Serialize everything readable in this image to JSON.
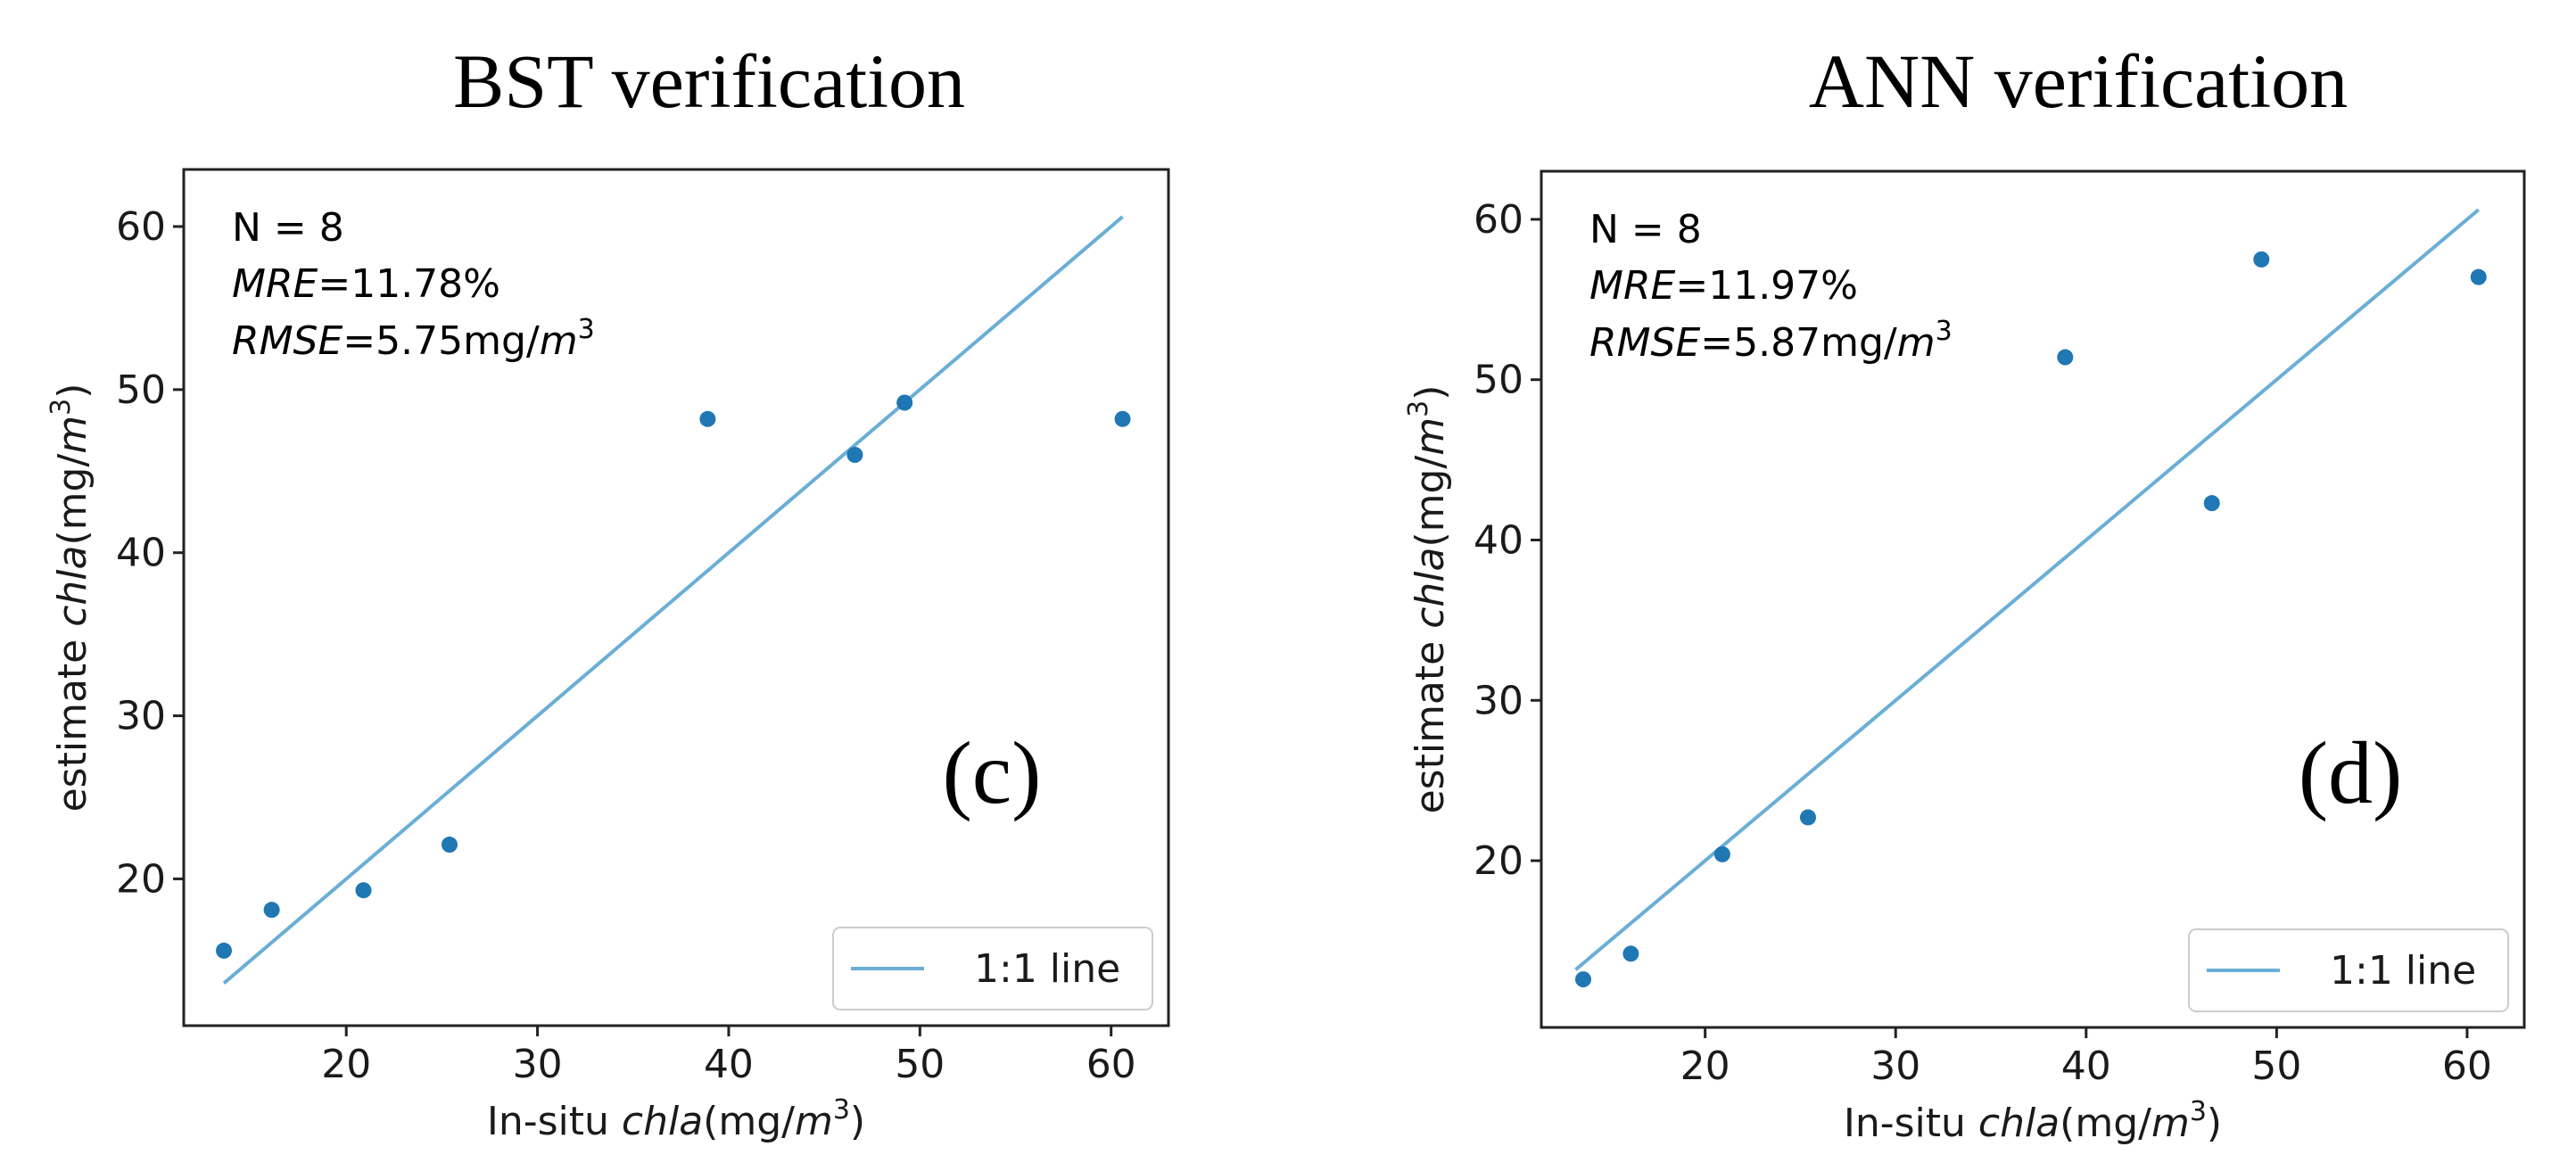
{
  "chart_data": [
    {
      "type": "scatter",
      "title": "BST verification",
      "panel_label": "(c)",
      "xlabel": {
        "prefix": "In-situ ",
        "italic": "chla",
        "units_prefix": "(mg/",
        "units_italic": "m",
        "units_sup": "3",
        "units_suffix": ")"
      },
      "ylabel": {
        "prefix": "estimate ",
        "italic": "chla",
        "units_prefix": "(mg/",
        "units_italic": "m",
        "units_sup": "3",
        "units_suffix": ")"
      },
      "xlim": [
        11.5,
        63
      ],
      "ylim": [
        11,
        63.5
      ],
      "xticks": [
        20,
        30,
        40,
        50,
        60
      ],
      "yticks": [
        20,
        30,
        40,
        50,
        60
      ],
      "annotations": {
        "n": "N = 8",
        "mre_label": "MRE",
        "mre_value": "=11.78%",
        "rmse_label": "RMSE",
        "rmse_value": "=5.75mg/",
        "rmse_unit_italic": "m",
        "rmse_unit_sup": "3"
      },
      "series": [
        {
          "name": "estimates",
          "x": [
            13.6,
            16.1,
            20.9,
            25.4,
            38.9,
            46.6,
            49.2,
            60.6
          ],
          "y": [
            15.6,
            18.1,
            19.3,
            22.1,
            48.2,
            46.0,
            49.2,
            48.2
          ]
        }
      ],
      "line": {
        "name": "1:1 line",
        "x": [
          13.6,
          60.6
        ],
        "y": [
          13.6,
          60.6
        ]
      },
      "legend": {
        "label": "1:1 line",
        "position": "lower-right"
      },
      "colors": {
        "points": "#1f77b4",
        "line": "#6aaed6"
      }
    },
    {
      "type": "scatter",
      "title": "ANN verification",
      "panel_label": "(d)",
      "xlabel": {
        "prefix": "In-situ ",
        "italic": "chla",
        "units_prefix": "(mg/",
        "units_italic": "m",
        "units_sup": "3",
        "units_suffix": ")"
      },
      "ylabel": {
        "prefix": "estimate ",
        "italic": "chla",
        "units_prefix": "(mg/",
        "units_italic": "m",
        "units_sup": "3",
        "units_suffix": ")"
      },
      "xlim": [
        11.4,
        63
      ],
      "ylim": [
        9.6,
        63
      ],
      "xticks": [
        20,
        30,
        40,
        50,
        60
      ],
      "yticks": [
        20,
        30,
        40,
        50,
        60
      ],
      "annotations": {
        "n": "N = 8",
        "mre_label": "MRE",
        "mre_value": "=11.97%",
        "rmse_label": "RMSE",
        "rmse_value": "=5.87mg/",
        "rmse_unit_italic": "m",
        "rmse_unit_sup": "3"
      },
      "series": [
        {
          "name": "estimates",
          "x": [
            13.6,
            16.1,
            20.9,
            25.4,
            38.9,
            46.6,
            49.2,
            60.6
          ],
          "y": [
            12.6,
            14.2,
            20.4,
            22.7,
            51.4,
            42.3,
            57.5,
            56.4
          ]
        }
      ],
      "line": {
        "name": "1:1 line",
        "x": [
          13.2,
          60.6
        ],
        "y": [
          13.2,
          60.6
        ]
      },
      "legend": {
        "label": "1:1 line",
        "position": "lower-right"
      },
      "colors": {
        "points": "#1f77b4",
        "line": "#6aaed6"
      }
    }
  ]
}
